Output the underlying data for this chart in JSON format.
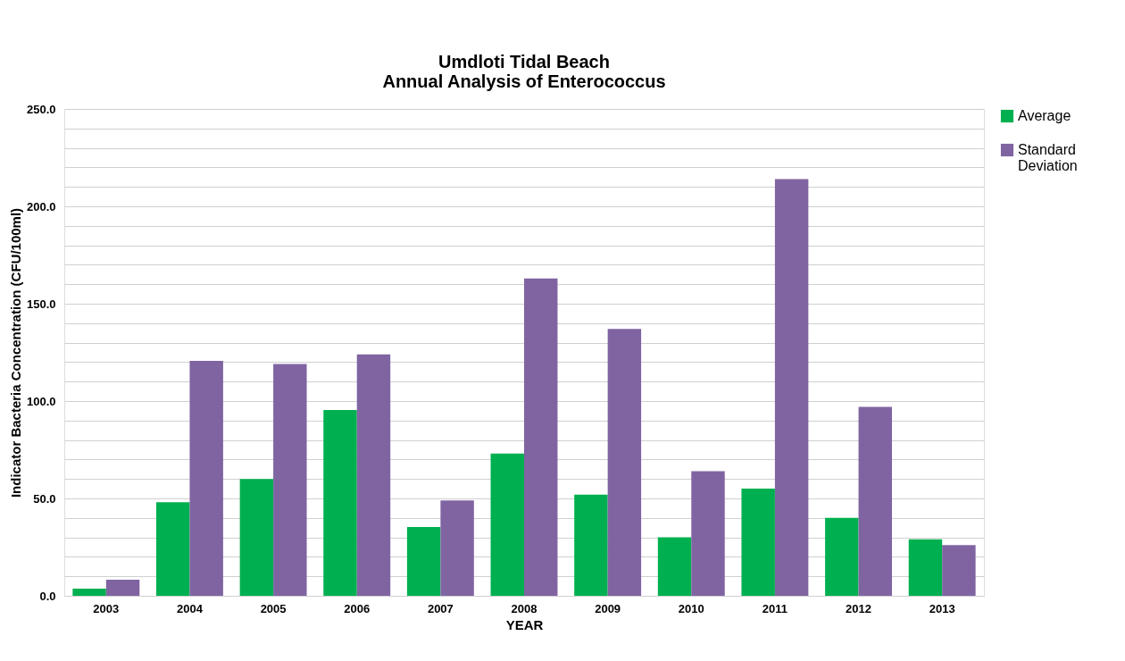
{
  "chart_data": {
    "type": "bar",
    "title": [
      "Umdloti Tidal Beach",
      "Annual Analysis of Enterococcus"
    ],
    "xlabel": "YEAR",
    "ylabel": "Indicator Bacteria Concentration (CFU/100ml)",
    "categories": [
      "2003",
      "2004",
      "2005",
      "2006",
      "2007",
      "2008",
      "2009",
      "2010",
      "2011",
      "2012",
      "2013"
    ],
    "series": [
      {
        "name": "Average",
        "color": "#00b050",
        "values": [
          3.7,
          48,
          60,
          95.4,
          35.3,
          73,
          52,
          30,
          55,
          40,
          29
        ]
      },
      {
        "name": "Standard Deviation",
        "color": "#8064a2",
        "values": [
          8.3,
          120.6,
          119,
          124,
          49,
          163,
          137,
          64,
          214,
          97,
          26
        ]
      }
    ],
    "ylim": [
      0,
      250
    ],
    "yticks": [
      {
        "value": 0,
        "label": "0.0"
      },
      {
        "value": 10,
        "label": null
      },
      {
        "value": 20,
        "label": null
      },
      {
        "value": 30,
        "label": null
      },
      {
        "value": 40,
        "label": null
      },
      {
        "value": 50,
        "label": "50.0"
      },
      {
        "value": 60,
        "label": null
      },
      {
        "value": 70,
        "label": null
      },
      {
        "value": 80,
        "label": null
      },
      {
        "value": 90,
        "label": null
      },
      {
        "value": 100,
        "label": "100.0"
      },
      {
        "value": 110,
        "label": null
      },
      {
        "value": 120,
        "label": null
      },
      {
        "value": 130,
        "label": null
      },
      {
        "value": 140,
        "label": null
      },
      {
        "value": 150,
        "label": "150.0"
      },
      {
        "value": 160,
        "label": null
      },
      {
        "value": 170,
        "label": null
      },
      {
        "value": 180,
        "label": null
      },
      {
        "value": 190,
        "label": null
      },
      {
        "value": 200,
        "label": "200.0"
      },
      {
        "value": 210,
        "label": null
      },
      {
        "value": 220,
        "label": null
      },
      {
        "value": 230,
        "label": null
      },
      {
        "value": 240,
        "label": null
      },
      {
        "value": 250,
        "label": "250.0"
      }
    ],
    "grid": "y",
    "legend": "right"
  }
}
